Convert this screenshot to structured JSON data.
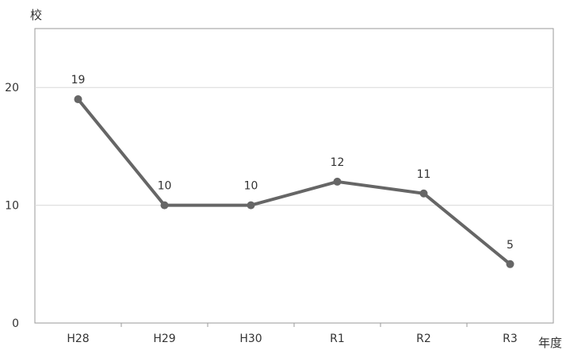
{
  "chart_data": {
    "type": "line",
    "categories": [
      "H28",
      "H29",
      "H30",
      "R1",
      "R2",
      "R3"
    ],
    "series": [
      {
        "values": [
          19,
          10,
          10,
          12,
          11,
          5
        ]
      }
    ],
    "ylabel": "校",
    "xlabel": "年度",
    "yticks": [
      0,
      10,
      20
    ],
    "ylim": [
      0,
      25
    ],
    "grid": true,
    "line_color": "#666666",
    "grid_color": "#d9d9d9",
    "axis_color": "#999999"
  }
}
